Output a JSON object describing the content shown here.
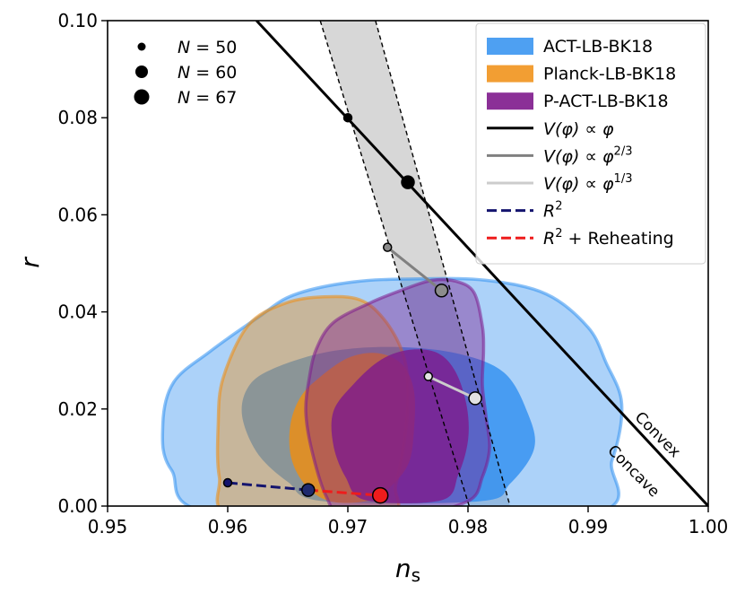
{
  "chart_data": {
    "type": "scatter",
    "title": "",
    "xlabel": "n_s",
    "ylabel": "r",
    "xlim": [
      0.95,
      1.0
    ],
    "ylim": [
      0.0,
      0.1
    ],
    "xticks": [
      "0.95",
      "0.96",
      "0.97",
      "0.98",
      "0.99",
      "1.00"
    ],
    "yticks": [
      "0.00",
      "0.02",
      "0.04",
      "0.06",
      "0.08",
      "0.10"
    ],
    "grid": false,
    "legend_position": "top-right",
    "size_legend": [
      {
        "label": "N = 50",
        "var": "N",
        "value": "50"
      },
      {
        "label": "N = 60",
        "var": "N",
        "value": "60"
      },
      {
        "label": "N = 67",
        "var": "N",
        "value": "67"
      }
    ],
    "contours": [
      {
        "name": "ACT-LB-BK18",
        "color": "#2f8ff0",
        "outer": [
          [
            0.9625,
            0.0388
          ],
          [
            0.9655,
            0.0435
          ],
          [
            0.9705,
            0.0462
          ],
          [
            0.976,
            0.0468
          ],
          [
            0.9815,
            0.0465
          ],
          [
            0.9865,
            0.0437
          ],
          [
            0.99,
            0.0368
          ],
          [
            0.9915,
            0.0295
          ],
          [
            0.9928,
            0.021
          ],
          [
            0.992,
            0.0095
          ],
          [
            0.9895,
            -0.002
          ],
          [
            0.96,
            -0.002
          ],
          [
            0.9553,
            0.0075
          ],
          [
            0.9546,
            0.0168
          ],
          [
            0.9555,
            0.0255
          ],
          [
            0.9585,
            0.0318
          ]
        ],
        "inner": [
          [
            0.9637,
            0.0282
          ],
          [
            0.9682,
            0.0317
          ],
          [
            0.9735,
            0.0328
          ],
          [
            0.979,
            0.0315
          ],
          [
            0.983,
            0.0275
          ],
          [
            0.985,
            0.019
          ],
          [
            0.9855,
            0.0118
          ],
          [
            0.9835,
            0.0046
          ],
          [
            0.981,
            0.001
          ],
          [
            0.968,
            0.001
          ],
          [
            0.965,
            0.005
          ],
          [
            0.9625,
            0.0108
          ],
          [
            0.9612,
            0.0185
          ],
          [
            0.9617,
            0.0245
          ]
        ]
      },
      {
        "name": "Planck-LB-BK18",
        "color": "#f08d0f",
        "outer": [
          [
            0.9617,
            0.0372
          ],
          [
            0.9648,
            0.0418
          ],
          [
            0.968,
            0.0431
          ],
          [
            0.971,
            0.0425
          ],
          [
            0.973,
            0.0385
          ],
          [
            0.9745,
            0.032
          ],
          [
            0.975,
            0.025
          ],
          [
            0.9748,
            0.015
          ],
          [
            0.974,
            0.0045
          ],
          [
            0.973,
            -0.002
          ],
          [
            0.9605,
            -0.002
          ],
          [
            0.9593,
            0.006
          ],
          [
            0.9592,
            0.0165
          ],
          [
            0.9596,
            0.0262
          ]
        ],
        "inner": [
          [
            0.9675,
            0.0262
          ],
          [
            0.97,
            0.0305
          ],
          [
            0.9725,
            0.0315
          ],
          [
            0.9745,
            0.0292
          ],
          [
            0.9755,
            0.0238
          ],
          [
            0.9755,
            0.0155
          ],
          [
            0.975,
            0.0085
          ],
          [
            0.9732,
            0.0032
          ],
          [
            0.9715,
            0.001
          ],
          [
            0.9685,
            0.001
          ],
          [
            0.9665,
            0.0042
          ],
          [
            0.9653,
            0.0098
          ],
          [
            0.9652,
            0.0165
          ],
          [
            0.966,
            0.0222
          ]
        ]
      },
      {
        "name": "P-ACT-LB-BK18",
        "color": "#7e1a8c",
        "outer": [
          [
            0.9688,
            0.0378
          ],
          [
            0.9718,
            0.0418
          ],
          [
            0.9745,
            0.0445
          ],
          [
            0.977,
            0.0465
          ],
          [
            0.979,
            0.0463
          ],
          [
            0.9805,
            0.044
          ],
          [
            0.9812,
            0.037
          ],
          [
            0.9813,
            0.032
          ],
          [
            0.9812,
            0.025
          ],
          [
            0.9815,
            0.0185
          ],
          [
            0.9818,
            0.012
          ],
          [
            0.9812,
            0.006
          ],
          [
            0.98,
            0.001
          ],
          [
            0.975,
            -0.002
          ],
          [
            0.9697,
            -0.002
          ],
          [
            0.9682,
            0.002
          ],
          [
            0.967,
            0.0115
          ],
          [
            0.9665,
            0.0195
          ],
          [
            0.9668,
            0.0265
          ],
          [
            0.9674,
            0.0325
          ]
        ],
        "inner": [
          [
            0.9705,
            0.0252
          ],
          [
            0.9728,
            0.0302
          ],
          [
            0.9752,
            0.0322
          ],
          [
            0.9775,
            0.0315
          ],
          [
            0.979,
            0.0275
          ],
          [
            0.9799,
            0.0205
          ],
          [
            0.98,
            0.0135
          ],
          [
            0.9792,
            0.0065
          ],
          [
            0.9778,
            0.0012
          ],
          [
            0.9715,
            0.0012
          ],
          [
            0.9698,
            0.006
          ],
          [
            0.9688,
            0.0125
          ],
          [
            0.9688,
            0.0195
          ]
        ]
      }
    ],
    "series": [
      {
        "name": "V(phi) ∝ phi",
        "legend_main": "V(φ) ∝ φ",
        "legend_sup": "",
        "color": "#000000",
        "line": [
          [
            0.9624,
            0.1
          ],
          [
            1.0,
            0.0
          ]
        ],
        "points": [
          {
            "x": 0.97,
            "y": 0.08,
            "N": 50
          },
          {
            "x": 0.975,
            "y": 0.0667,
            "N": 60
          }
        ]
      },
      {
        "name": "V(phi) ∝ phi^(2/3)",
        "legend_main": "V(φ) ∝ φ",
        "legend_sup": "2/3",
        "color": "#808080",
        "points": [
          {
            "x": 0.9733,
            "y": 0.0533,
            "N": 50
          },
          {
            "x": 0.9778,
            "y": 0.0444,
            "N": 60
          }
        ]
      },
      {
        "name": "V(phi) ∝ phi^(1/3)",
        "legend_main": "V(φ) ∝ φ",
        "legend_sup": "1/3",
        "color": "#cccccc",
        "points": [
          {
            "x": 0.9767,
            "y": 0.0267,
            "N": 50
          },
          {
            "x": 0.9806,
            "y": 0.0222,
            "N": 60
          }
        ]
      },
      {
        "name": "R^2",
        "legend_main": "R",
        "legend_sup": "2",
        "color": "#14146e",
        "points": [
          {
            "x": 0.96,
            "y": 0.0048,
            "N": 50
          },
          {
            "x": 0.9667,
            "y": 0.0033,
            "N": 60
          }
        ]
      },
      {
        "name": "R^2 + Reheating",
        "legend_main": "R",
        "legend_sup": "2",
        "legend_tail": " + Reheating",
        "color": "#ee1c1c",
        "points": [
          {
            "x": 0.9667,
            "y": 0.0033,
            "N": 60
          },
          {
            "x": 0.9727,
            "y": 0.0022,
            "N": 67
          }
        ]
      }
    ],
    "band": {
      "name": "phi^p band",
      "color": "#bdbdbd",
      "left_edge": [
        [
          0.9677,
          0.1
        ],
        [
          0.9801,
          0.0
        ]
      ],
      "right_edge": [
        [
          0.9723,
          0.1
        ],
        [
          0.9835,
          0.0
        ]
      ]
    },
    "annotations": [
      {
        "text": "Convex",
        "x": 0.9955,
        "y": 0.014
      },
      {
        "text": "Concave",
        "x": 0.9935,
        "y": 0.0065
      }
    ]
  }
}
